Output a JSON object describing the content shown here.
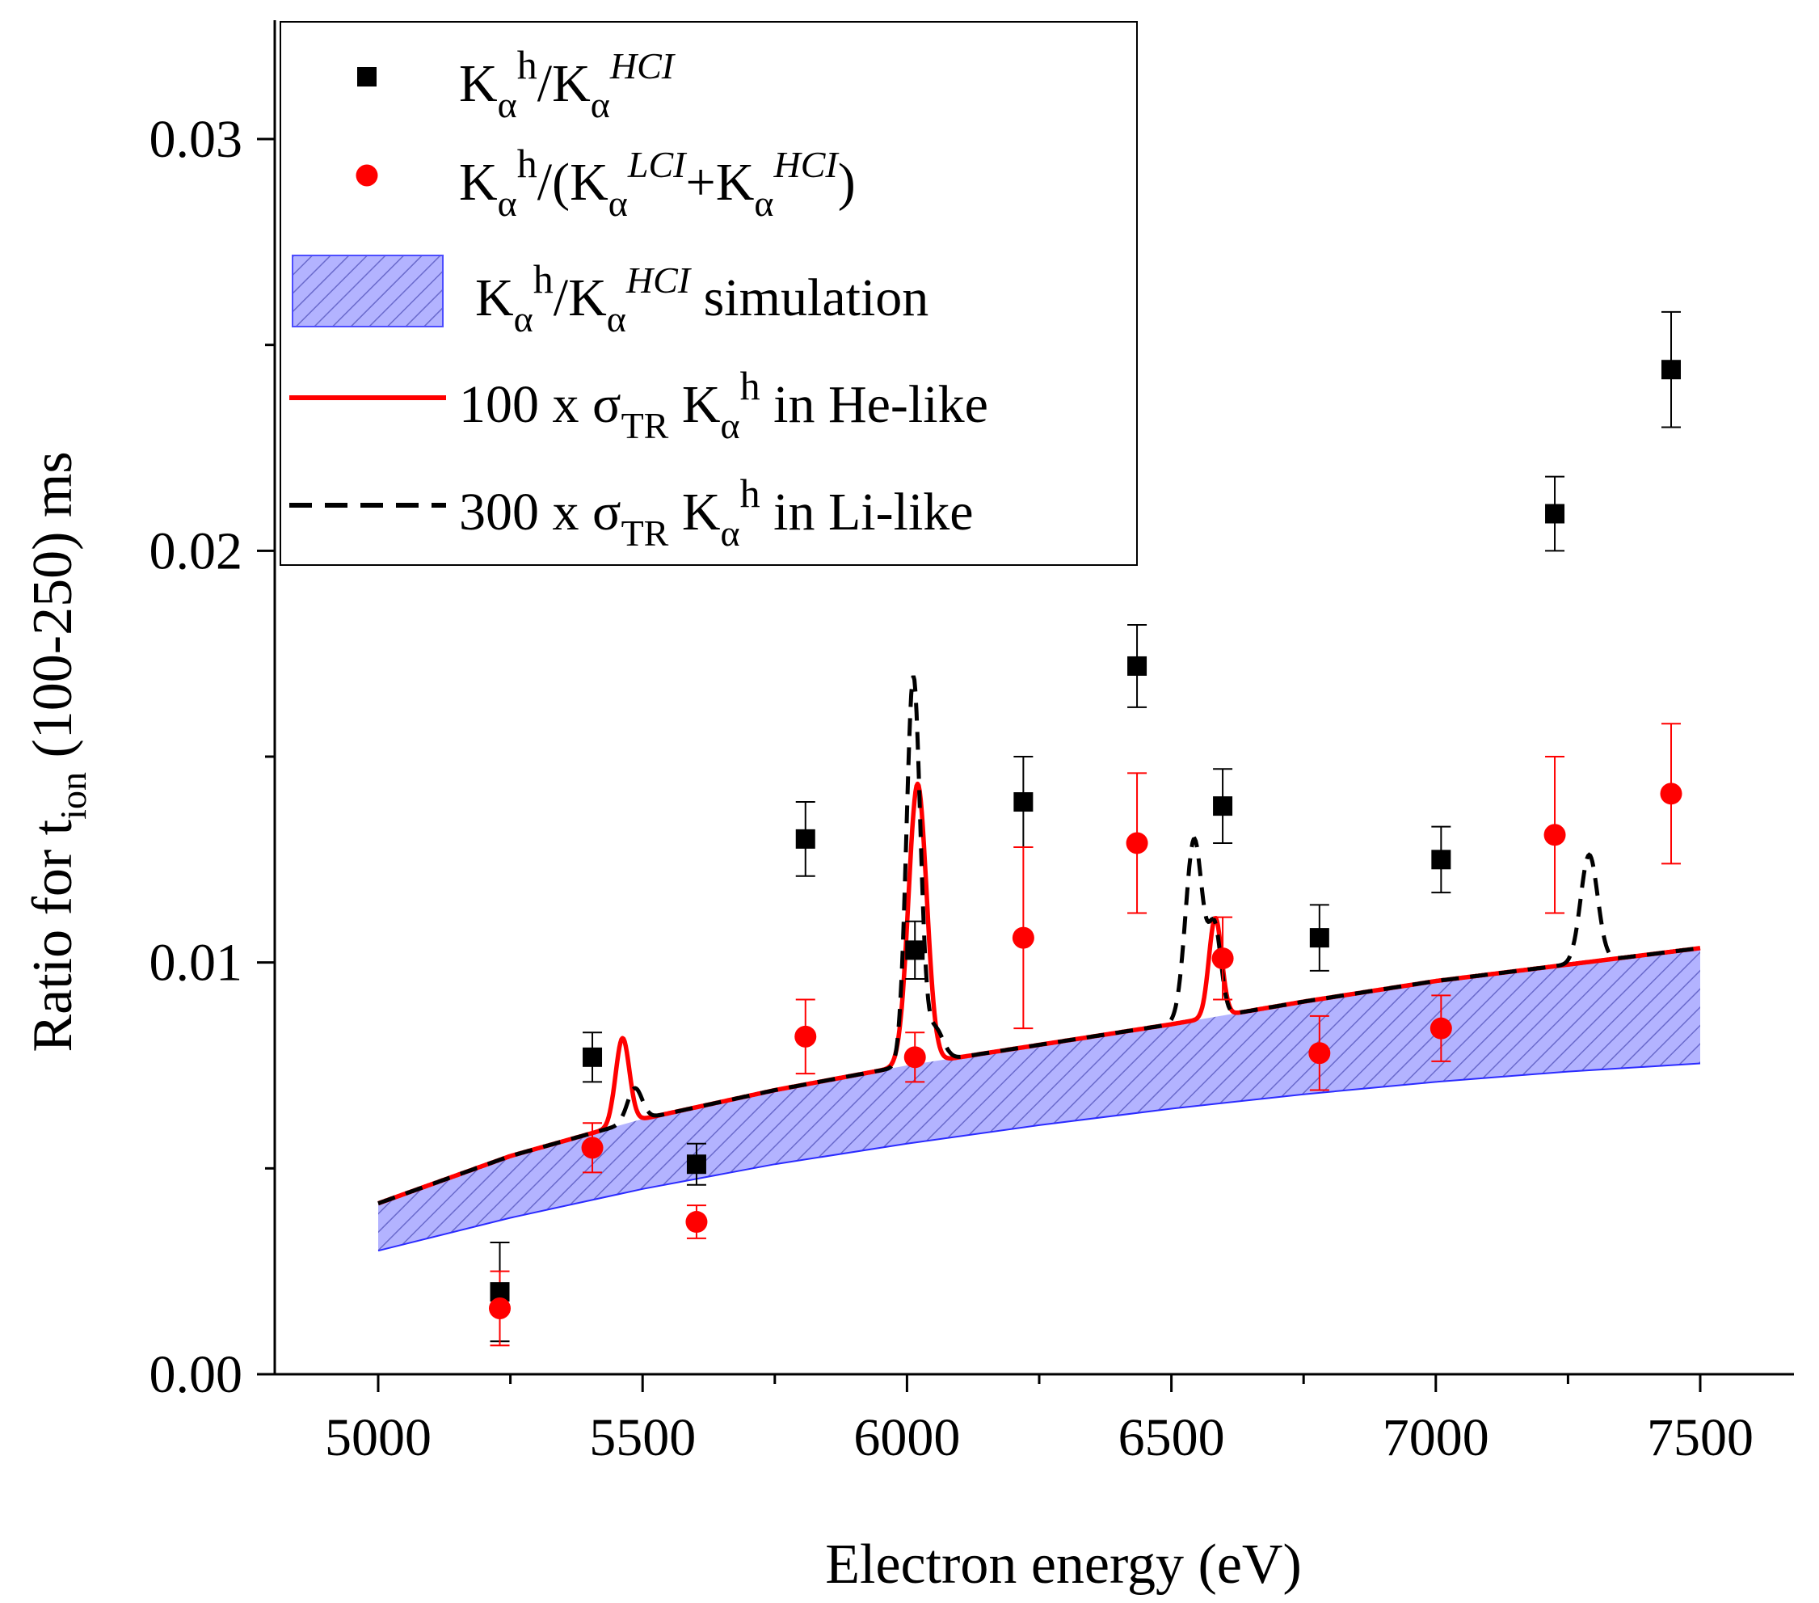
{
  "chart_data": {
    "type": "scatter",
    "xlabel": "Electron energy (eV)",
    "ylabel": {
      "main": "Ratio for t",
      "sub": "ion",
      "rest": " (100-250) ms"
    },
    "xlim": [
      4800,
      7800
    ],
    "ylim": [
      0.0,
      0.0333
    ],
    "xticks": [
      5000,
      5500,
      6000,
      6500,
      7000,
      7500
    ],
    "xtick_labels": [
      "5000",
      "5500",
      "6000",
      "6500",
      "7000",
      "7500"
    ],
    "yticks": [
      0.0,
      0.01,
      0.02,
      0.03
    ],
    "ytick_labels": [
      "0.00",
      "0.01",
      "0.02",
      "0.03"
    ],
    "legend_position": "top-left",
    "legend": [
      {
        "key": "sq",
        "kind": "marker-square",
        "color": "#000000",
        "parts": [
          "K",
          "α",
          "h",
          "/K",
          "α",
          "HCI"
        ]
      },
      {
        "key": "circ",
        "kind": "marker-circle",
        "color": "#ff0000",
        "parts": [
          "K",
          "α",
          "h",
          "/(K",
          "α",
          "LCI",
          "+K",
          "α",
          "HCI",
          ")"
        ]
      },
      {
        "key": "band",
        "kind": "hatched-band",
        "color": "#4d4dff",
        "parts": [
          "K",
          "α",
          "h",
          "/K",
          "α",
          "HCI",
          " simulation"
        ]
      },
      {
        "key": "he",
        "kind": "solid-line",
        "color": "#ff0000",
        "parts": [
          "100 x σ",
          "TR",
          " K",
          "α",
          "h",
          " in He-like"
        ]
      },
      {
        "key": "li",
        "kind": "dashed-line",
        "color": "#000000",
        "parts": [
          "300 x σ",
          "TR",
          " K",
          "α",
          "h",
          " in Li-like"
        ]
      }
    ],
    "series": [
      {
        "name": "Kα h / Kα HCI",
        "marker": "square",
        "color": "#000000",
        "points": [
          {
            "x": 5230,
            "y": 0.002,
            "err": 0.0012
          },
          {
            "x": 5405,
            "y": 0.0077,
            "err": 0.0006
          },
          {
            "x": 5602,
            "y": 0.0051,
            "err": 0.0005
          },
          {
            "x": 5808,
            "y": 0.013,
            "err": 0.0009
          },
          {
            "x": 6015,
            "y": 0.0103,
            "err": 0.0007
          },
          {
            "x": 6220,
            "y": 0.0139,
            "err": 0.0011
          },
          {
            "x": 6435,
            "y": 0.0172,
            "err": 0.001
          },
          {
            "x": 6597,
            "y": 0.0138,
            "err": 0.0009
          },
          {
            "x": 6780,
            "y": 0.0106,
            "err": 0.0008
          },
          {
            "x": 7010,
            "y": 0.0125,
            "err": 0.0008
          },
          {
            "x": 7225,
            "y": 0.0209,
            "err": 0.0009
          },
          {
            "x": 7445,
            "y": 0.0244,
            "err": 0.0014
          }
        ]
      },
      {
        "name": "Kα h / (Kα LCI + Kα HCI)",
        "marker": "circle",
        "color": "#ff0000",
        "points": [
          {
            "x": 5230,
            "y": 0.0016,
            "err": 0.0009
          },
          {
            "x": 5405,
            "y": 0.0055,
            "err": 0.0006
          },
          {
            "x": 5602,
            "y": 0.0037,
            "err": 0.0004
          },
          {
            "x": 5808,
            "y": 0.0082,
            "err": 0.0009
          },
          {
            "x": 6015,
            "y": 0.0077,
            "err": 0.0006
          },
          {
            "x": 6220,
            "y": 0.0106,
            "err": 0.0022
          },
          {
            "x": 6435,
            "y": 0.0129,
            "err": 0.0017
          },
          {
            "x": 6597,
            "y": 0.0101,
            "err": 0.001
          },
          {
            "x": 6780,
            "y": 0.0078,
            "err": 0.0009
          },
          {
            "x": 7010,
            "y": 0.0084,
            "err": 0.0008
          },
          {
            "x": 7225,
            "y": 0.0131,
            "err": 0.0019
          },
          {
            "x": 7445,
            "y": 0.0141,
            "err": 0.0017
          }
        ]
      },
      {
        "name": "Kα h / Kα HCI simulation",
        "kind": "band",
        "color": "#4d4dff",
        "x": [
          5000,
          5250,
          5500,
          5750,
          6000,
          6250,
          6500,
          6750,
          7000,
          7250,
          7500
        ],
        "upper": [
          0.00415,
          0.0053,
          0.0062,
          0.0069,
          0.0075,
          0.008,
          0.0085,
          0.00905,
          0.00955,
          0.00995,
          0.01035
        ],
        "lower": [
          0.003,
          0.0038,
          0.0045,
          0.0051,
          0.0056,
          0.00605,
          0.00645,
          0.0068,
          0.0071,
          0.00735,
          0.00755
        ]
      },
      {
        "name": "100 x σTR Kα h in He-like",
        "kind": "line",
        "color": "#ff0000",
        "peaks": [
          {
            "center": 5462,
            "height": 0.0021,
            "width": 13
          },
          {
            "center": 6020,
            "height": 0.0068,
            "width": 17
          },
          {
            "center": 6583,
            "height": 0.0024,
            "width": 12
          }
        ]
      },
      {
        "name": "300 x σTR Kα h in Li-like",
        "kind": "line",
        "color": "#000000",
        "dashed": true,
        "peaks": [
          {
            "center": 5485,
            "height": 0.0008,
            "width": 14
          },
          {
            "center": 6012,
            "height": 0.0094,
            "width": 13
          },
          {
            "center": 6052,
            "height": 0.0008,
            "width": 16
          },
          {
            "center": 6543,
            "height": 0.0044,
            "width": 16
          },
          {
            "center": 6582,
            "height": 0.0021,
            "width": 12
          },
          {
            "center": 7290,
            "height": 0.0026,
            "width": 16
          }
        ]
      }
    ]
  }
}
